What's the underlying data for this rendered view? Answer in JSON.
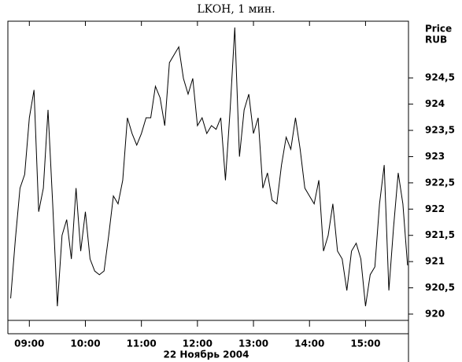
{
  "chart_data": {
    "type": "line",
    "title": "LKOH, 1 мин.",
    "y_label_lines": [
      "Price",
      "RUB"
    ],
    "xlabel": "22 Ноябрь 2004",
    "x": [
      520,
      525,
      530,
      535,
      540,
      545,
      550,
      555,
      560,
      565,
      570,
      575,
      580,
      585,
      590,
      595,
      600,
      605,
      610,
      615,
      620,
      625,
      630,
      635,
      640,
      645,
      650,
      655,
      660,
      665,
      670,
      675,
      680,
      685,
      690,
      695,
      700,
      705,
      710,
      715,
      720,
      725,
      730,
      735,
      740,
      745,
      750,
      755,
      760,
      765,
      770,
      775,
      780,
      785,
      790,
      795,
      800,
      805,
      810,
      815,
      820,
      825,
      830,
      835,
      840,
      845,
      850,
      855,
      860,
      865,
      870,
      875,
      880,
      885,
      890,
      895,
      900,
      905,
      910,
      915,
      920,
      925,
      930,
      935,
      940,
      945
    ],
    "series": [
      {
        "name": "LKOH",
        "color": "#000000",
        "values": [
          920.3,
          921.42,
          922.4,
          922.66,
          923.74,
          924.27,
          921.95,
          922.4,
          923.89,
          922.1,
          920.15,
          921.5,
          921.8,
          921.05,
          922.4,
          921.2,
          921.95,
          921.05,
          920.82,
          920.75,
          920.82,
          921.5,
          922.25,
          922.1,
          922.55,
          923.74,
          923.44,
          923.22,
          923.44,
          923.74,
          923.74,
          924.34,
          924.12,
          923.59,
          924.79,
          924.94,
          925.09,
          924.49,
          924.19,
          924.49,
          923.59,
          923.74,
          923.44,
          923.59,
          923.52,
          923.74,
          922.55,
          923.89,
          925.46,
          923.0,
          923.89,
          924.19,
          923.44,
          923.74,
          922.4,
          922.69,
          922.17,
          922.1,
          922.84,
          923.37,
          923.14,
          923.74,
          923.14,
          922.4,
          922.25,
          922.1,
          922.55,
          921.2,
          921.5,
          922.1,
          921.2,
          921.05,
          920.45,
          921.2,
          921.35,
          921.05,
          920.15,
          920.75,
          920.9,
          922.1,
          922.84,
          920.45,
          921.65,
          922.69,
          922.1,
          920.93
        ]
      }
    ],
    "xlim": [
      517,
      946
    ],
    "xticks": [
      {
        "value": 540,
        "label": "09:00"
      },
      {
        "value": 600,
        "label": "10:00"
      },
      {
        "value": 660,
        "label": "11:00"
      },
      {
        "value": 720,
        "label": "12:00"
      },
      {
        "value": 780,
        "label": "13:00"
      },
      {
        "value": 840,
        "label": "14:00"
      },
      {
        "value": 900,
        "label": "15:00"
      }
    ],
    "ylim": [
      919.88,
      925.58
    ],
    "yticks": [
      920,
      {
        "value": 920.5,
        "label": "920,5"
      },
      921,
      {
        "value": 921.5,
        "label": "921,5"
      },
      922,
      {
        "value": 922.5,
        "label": "922,5"
      },
      923,
      {
        "value": 923.5,
        "label": "923,5"
      },
      924,
      {
        "value": 924.5,
        "label": "924,5"
      }
    ]
  }
}
